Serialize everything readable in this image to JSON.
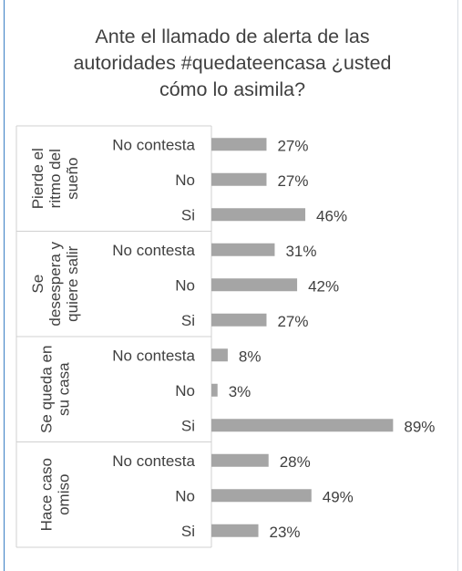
{
  "chart_data": {
    "type": "bar",
    "orientation": "horizontal",
    "title": "Ante el llamado de alerta de las autoridades #quedateencasa ¿usted cómo lo asimila?",
    "title_lines": [
      "Ante el llamado de alerta de las",
      "autoridades #quedateencasa ¿usted",
      "cómo lo asimila?"
    ],
    "xlim": [
      0,
      100
    ],
    "value_format": "percent",
    "grid": false,
    "legend": "none",
    "bar_color": "#a5a5a5",
    "groups": [
      {
        "label": "Pierde el ritmo del sueño",
        "label_lines": [
          "Pierde el",
          "ritmo del",
          "sueño"
        ],
        "categories": [
          {
            "label": "No contesta",
            "value": 27,
            "value_label": "27%"
          },
          {
            "label": "No",
            "value": 27,
            "value_label": "27%"
          },
          {
            "label": "Si",
            "value": 46,
            "value_label": "46%"
          }
        ]
      },
      {
        "label": "Se desespera y quiere salir",
        "label_lines": [
          "Se",
          "desespera y",
          "quiere salir"
        ],
        "categories": [
          {
            "label": "No contesta",
            "value": 31,
            "value_label": "31%"
          },
          {
            "label": "No",
            "value": 42,
            "value_label": "42%"
          },
          {
            "label": "Si",
            "value": 27,
            "value_label": "27%"
          }
        ]
      },
      {
        "label": "Se queda en su casa",
        "label_lines": [
          "Se queda en",
          "su casa"
        ],
        "categories": [
          {
            "label": "No contesta",
            "value": 8,
            "value_label": "8%"
          },
          {
            "label": "No",
            "value": 3,
            "value_label": "3%"
          },
          {
            "label": "Si",
            "value": 89,
            "value_label": "89%"
          }
        ]
      },
      {
        "label": "Hace caso omiso",
        "label_lines": [
          "Hace caso",
          "omiso"
        ],
        "categories": [
          {
            "label": "No contesta",
            "value": 28,
            "value_label": "28%"
          },
          {
            "label": "No",
            "value": 49,
            "value_label": "49%"
          },
          {
            "label": "Si",
            "value": 23,
            "value_label": "23%"
          }
        ]
      }
    ]
  }
}
